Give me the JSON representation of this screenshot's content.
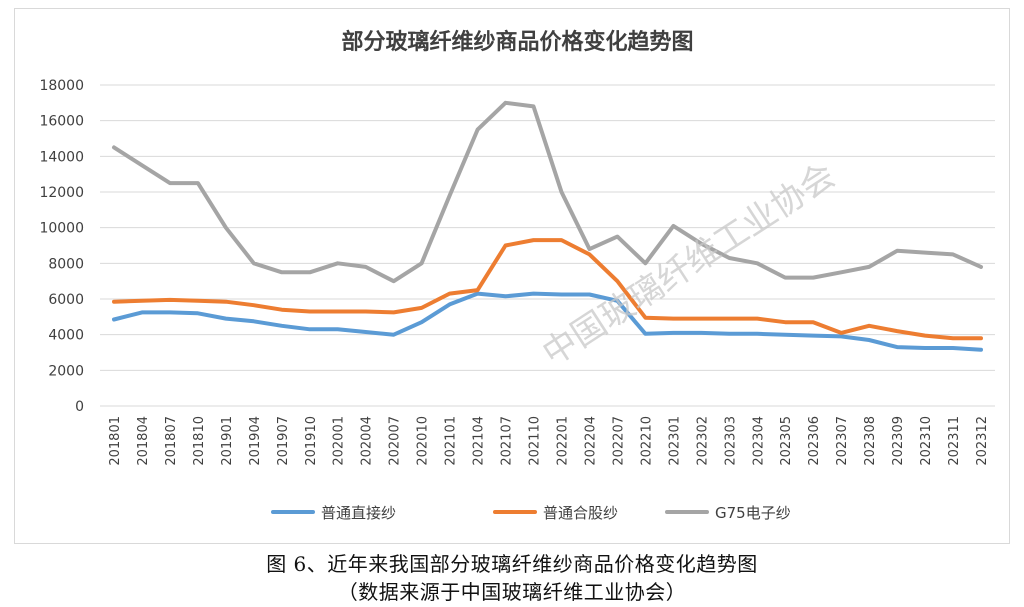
{
  "chart_data": {
    "type": "line",
    "title": "部分玻璃纤维纱商品价格变化趋势图",
    "ylim": [
      0,
      18000
    ],
    "yticks": [
      0,
      2000,
      4000,
      6000,
      8000,
      10000,
      12000,
      14000,
      16000,
      18000
    ],
    "grid": true,
    "legend_position": "bottom",
    "categories": [
      "201801",
      "201804",
      "201807",
      "201810",
      "201901",
      "201904",
      "201907",
      "201910",
      "202001",
      "202004",
      "202007",
      "202010",
      "202101",
      "202104",
      "202107",
      "202110",
      "202201",
      "202204",
      "202207",
      "202210",
      "202301",
      "202302",
      "202303",
      "202304",
      "202305",
      "202306",
      "202307",
      "202308",
      "202309",
      "202310",
      "202311",
      "202312"
    ],
    "series": [
      {
        "name": "普通直接纱",
        "color": "#5b9bd5",
        "values": [
          4850,
          5250,
          5250,
          5200,
          4900,
          4750,
          4500,
          4300,
          4300,
          4150,
          4000,
          4700,
          5700,
          6300,
          6150,
          6300,
          6250,
          6250,
          5900,
          4050,
          4100,
          4100,
          4050,
          4050,
          4000,
          3950,
          3900,
          3700,
          3300,
          3250,
          3250,
          3150
        ]
      },
      {
        "name": "普通合股纱",
        "color": "#ed7d31",
        "values": [
          5850,
          5900,
          5950,
          5900,
          5850,
          5650,
          5400,
          5300,
          5300,
          5300,
          5250,
          5500,
          6300,
          6500,
          9000,
          9300,
          9300,
          8500,
          7000,
          4950,
          4900,
          4900,
          4900,
          4900,
          4700,
          4700,
          4100,
          4500,
          4200,
          3950,
          3800,
          3800
        ]
      },
      {
        "name": "G75电子纱",
        "color": "#a5a5a5",
        "values": [
          14500,
          13500,
          12500,
          12500,
          10000,
          8000,
          7500,
          7500,
          8000,
          7800,
          7000,
          8000,
          11800,
          15500,
          17000,
          16800,
          12000,
          8800,
          9500,
          8000,
          10100,
          9100,
          8300,
          8000,
          7200,
          7200,
          7500,
          7800,
          8700,
          8600,
          8500,
          7800
        ]
      }
    ]
  },
  "watermark": "中国玻璃纤维工业协会",
  "caption": {
    "line1": "图 6、近年来我国部分玻璃纤维纱商品价格变化趋势图",
    "line2": "（数据来源于中国玻璃纤维工业协会）"
  }
}
